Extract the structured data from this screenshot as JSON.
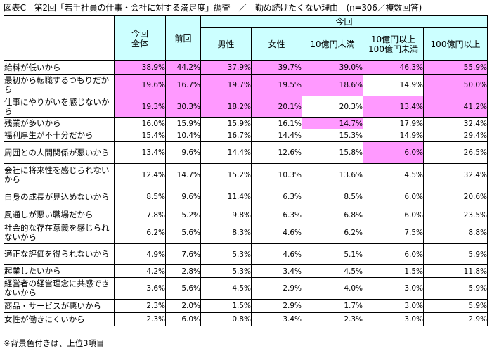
{
  "title": "図表C　第2回「若手社員の仕事・会社に対する満足度」調査　／　勤め続けたくない理由　(n=306／複数回答)",
  "note": "※背景色付きは、上位3項目",
  "highlight_color": "#ff99ff",
  "header_color": "#ccffff",
  "header": {
    "total": "今回\n全体",
    "prev": "前回",
    "current_group": "今回",
    "cols": [
      "男性",
      "女性",
      "10億円未満",
      "10億円以上\n100億円未満",
      "100億円以上"
    ]
  },
  "rows": [
    {
      "label": "給料が低いから",
      "values": [
        "38.9%",
        "44.2%",
        "37.9%",
        "39.7%",
        "39.0%",
        "46.3%",
        "55.9%"
      ],
      "hl": [
        1,
        1,
        1,
        1,
        1,
        1,
        1
      ]
    },
    {
      "label": "最初から転職するつもりだから",
      "values": [
        "19.6%",
        "16.7%",
        "19.7%",
        "19.5%",
        "18.6%",
        "14.9%",
        "50.0%"
      ],
      "hl": [
        1,
        1,
        1,
        1,
        1,
        0,
        1
      ]
    },
    {
      "label": "仕事にやりがいを感じないから",
      "values": [
        "19.3%",
        "30.3%",
        "18.2%",
        "20.1%",
        "20.3%",
        "13.4%",
        "41.2%"
      ],
      "hl": [
        1,
        1,
        1,
        1,
        0,
        1,
        1
      ]
    },
    {
      "label": "残業が多いから",
      "values": [
        "16.0%",
        "15.9%",
        "15.9%",
        "16.1%",
        "14.7%",
        "17.9%",
        "32.4%"
      ],
      "hl": [
        0,
        0,
        0,
        0,
        1,
        0,
        0
      ]
    },
    {
      "label": "福利厚生が不十分だから",
      "values": [
        "15.4%",
        "10.4%",
        "16.7%",
        "14.4%",
        "15.3%",
        "14.9%",
        "29.4%"
      ],
      "hl": [
        0,
        0,
        0,
        0,
        0,
        0,
        0
      ]
    },
    {
      "label": "周囲との人間関係が悪いから",
      "values": [
        "13.4%",
        "9.6%",
        "14.4%",
        "12.6%",
        "15.8%",
        "6.0%",
        "26.5%"
      ],
      "hl": [
        0,
        0,
        0,
        0,
        0,
        1,
        0
      ]
    },
    {
      "label": "会社に将来性を感じられないから",
      "values": [
        "12.4%",
        "14.7%",
        "15.2%",
        "10.3%",
        "13.6%",
        "4.5%",
        "32.4%"
      ],
      "hl": [
        0,
        0,
        0,
        0,
        0,
        0,
        0
      ]
    },
    {
      "label": "自身の成長が見込めないから",
      "values": [
        "8.5%",
        "9.6%",
        "11.4%",
        "6.3%",
        "8.5%",
        "6.0%",
        "20.6%"
      ],
      "hl": [
        0,
        0,
        0,
        0,
        0,
        0,
        0
      ]
    },
    {
      "label": "風通しが悪い職場だから",
      "values": [
        "7.8%",
        "5.2%",
        "9.8%",
        "6.3%",
        "6.8%",
        "6.0%",
        "23.5%"
      ],
      "hl": [
        0,
        0,
        0,
        0,
        0,
        0,
        0
      ]
    },
    {
      "label": "社会的な存在意義を感じられないから",
      "values": [
        "6.2%",
        "5.6%",
        "8.3%",
        "4.6%",
        "6.2%",
        "7.5%",
        "8.8%"
      ],
      "hl": [
        0,
        0,
        0,
        0,
        0,
        0,
        0
      ]
    },
    {
      "label": "適正な評価を得られないから",
      "values": [
        "4.9%",
        "7.6%",
        "5.3%",
        "4.6%",
        "5.1%",
        "6.0%",
        "5.9%"
      ],
      "hl": [
        0,
        0,
        0,
        0,
        0,
        0,
        0
      ]
    },
    {
      "label": "起業したいから",
      "values": [
        "4.2%",
        "2.8%",
        "5.3%",
        "3.4%",
        "4.5%",
        "1.5%",
        "11.8%"
      ],
      "hl": [
        0,
        0,
        0,
        0,
        0,
        0,
        0
      ]
    },
    {
      "label": "経営者の経営理念に共感できないから",
      "values": [
        "3.6%",
        "5.6%",
        "4.5%",
        "2.9%",
        "4.0%",
        "3.0%",
        "5.9%"
      ],
      "hl": [
        0,
        0,
        0,
        0,
        0,
        0,
        0
      ]
    },
    {
      "label": "商品・サービスが悪いから",
      "values": [
        "2.3%",
        "2.0%",
        "1.5%",
        "2.9%",
        "1.7%",
        "3.0%",
        "5.9%"
      ],
      "hl": [
        0,
        0,
        0,
        0,
        0,
        0,
        0
      ]
    },
    {
      "label": "女性が働きにくいから",
      "values": [
        "2.3%",
        "6.0%",
        "0.8%",
        "3.4%",
        "2.3%",
        "3.0%",
        "2.9%"
      ],
      "hl": [
        0,
        0,
        0,
        0,
        0,
        0,
        0
      ]
    }
  ]
}
